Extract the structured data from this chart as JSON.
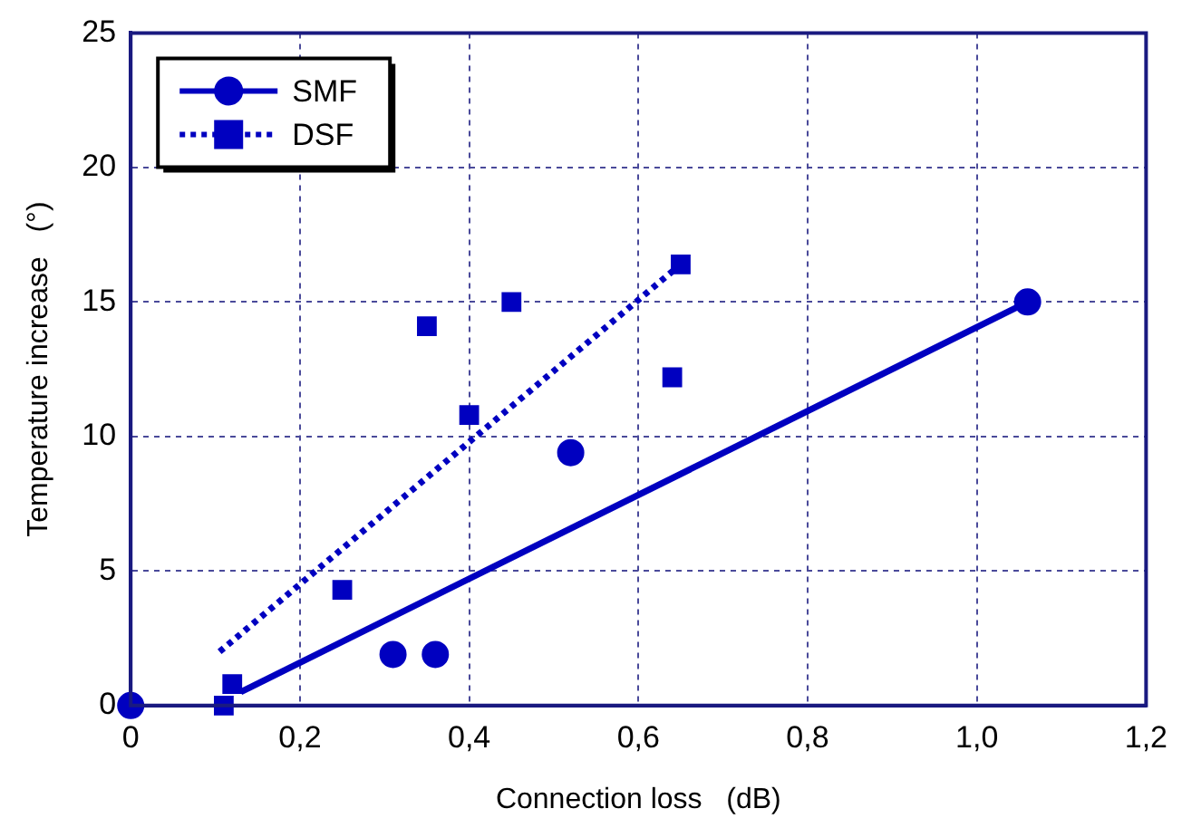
{
  "chart_data": {
    "type": "scatter",
    "xlabel": "Connection loss   (dB)",
    "ylabel": "Temperature increase   (°)",
    "xlim": [
      0,
      1.2
    ],
    "xticks": [
      0,
      {
        "value": 0.2,
        "label": "0,2"
      },
      {
        "value": 0.4,
        "label": "0,4"
      },
      {
        "value": 0.6,
        "label": "0,6"
      },
      {
        "value": 0.8,
        "label": "0,8"
      },
      {
        "value": 1.0,
        "label": "1,0"
      },
      {
        "value": 1.2,
        "label": "1,2"
      }
    ],
    "ylim": [
      0,
      25
    ],
    "yticks": [
      0,
      5,
      10,
      15,
      20,
      25
    ],
    "grid": true,
    "legend": "top left",
    "series": [
      {
        "name": "SMF",
        "marker": "circle",
        "color": "#0000c0",
        "x": [
          0,
          0.31,
          0.36,
          0.52,
          1.06
        ],
        "values": [
          0,
          1.9,
          1.9,
          9.4,
          15.0
        ]
      },
      {
        "type": "line",
        "marker": "none",
        "line_style": "solid",
        "color": "#0000c0",
        "x": [
          0.13,
          1.06
        ],
        "values": [
          0.5,
          15.0
        ]
      },
      {
        "name": "DSF",
        "marker": "square",
        "color": "#0000c0",
        "x": [
          0.11,
          0.12,
          0.25,
          0.35,
          0.4,
          0.45,
          0.64,
          0.65
        ],
        "values": [
          0,
          0.8,
          4.3,
          14.1,
          10.8,
          15.0,
          12.2,
          16.4
        ]
      },
      {
        "type": "line",
        "marker": "none",
        "line_style": "dotted",
        "color": "#0000c0",
        "x": [
          0.105,
          0.65
        ],
        "values": [
          2.0,
          16.4
        ]
      }
    ]
  }
}
